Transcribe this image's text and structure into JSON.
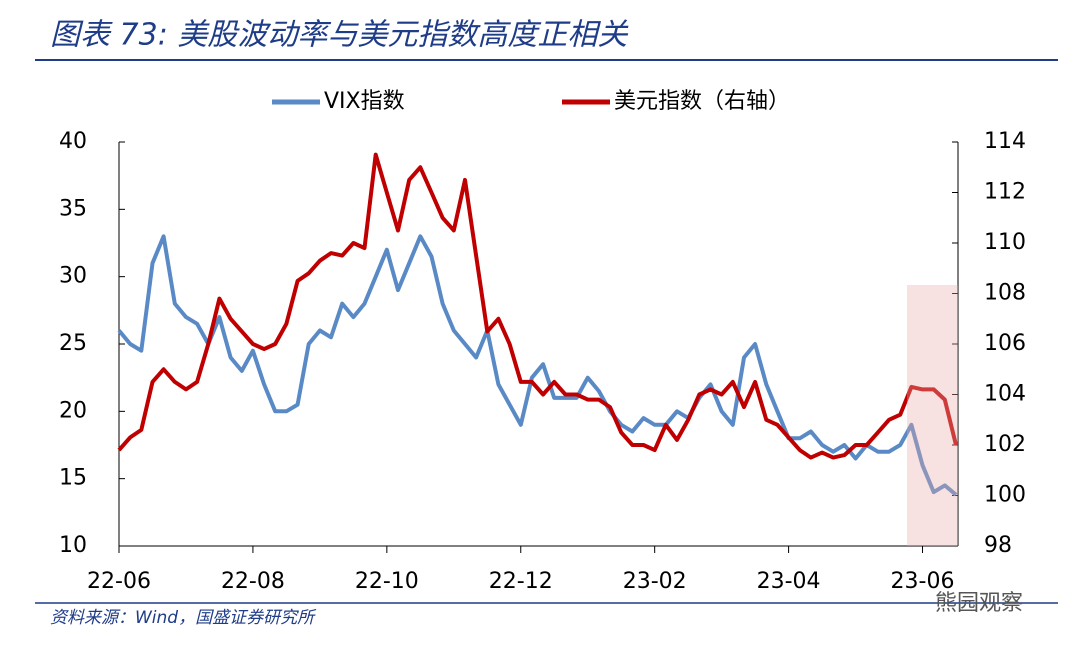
{
  "chart_data": {
    "type": "line",
    "title": "图表 73:  美股波动率与美元指数高度正相关",
    "source": "资料来源：Wind，国盛证券研究所",
    "watermark": "熊园观察",
    "categories": [
      "22-06",
      null,
      null,
      null,
      null,
      null,
      null,
      null,
      null,
      null,
      null,
      null,
      "22-08",
      null,
      null,
      null,
      null,
      null,
      null,
      null,
      null,
      null,
      null,
      null,
      "22-10",
      null,
      null,
      null,
      null,
      null,
      null,
      null,
      null,
      null,
      null,
      null,
      "22-12",
      null,
      null,
      null,
      null,
      null,
      null,
      null,
      null,
      null,
      null,
      null,
      "23-02",
      null,
      null,
      null,
      null,
      null,
      null,
      null,
      null,
      null,
      null,
      null,
      "23-04",
      null,
      null,
      null,
      null,
      null,
      null,
      null,
      null,
      null,
      null,
      null,
      "23-06",
      null,
      null,
      null
    ],
    "series": [
      {
        "name": "VIX指数",
        "color": "#5a8ac6",
        "values": [
          26,
          25,
          24.5,
          31,
          33,
          28,
          27,
          26.5,
          25,
          27,
          24,
          23,
          24.5,
          22,
          20,
          20,
          20.5,
          25,
          26,
          25.5,
          28,
          27,
          28,
          30,
          32,
          29,
          31,
          33,
          31.5,
          28,
          26,
          25,
          24,
          26,
          22,
          20.5,
          19,
          22.5,
          23.5,
          21,
          21,
          21,
          22.5,
          21.5,
          20,
          19,
          18.5,
          19.5,
          19,
          19,
          20,
          19.5,
          21,
          22,
          20,
          19,
          24,
          25,
          22,
          20,
          18,
          18,
          18.5,
          17.5,
          17,
          17.5,
          16.5,
          17.5,
          17,
          17,
          17.5,
          19,
          16,
          14,
          14.5,
          13.8
        ]
      },
      {
        "name": "美元指数（右轴）",
        "color": "#c00000",
        "axis": "y2",
        "values": [
          101.8,
          102.3,
          102.6,
          104.5,
          105,
          104.5,
          104.2,
          104.5,
          106,
          107.8,
          107,
          106.5,
          106,
          105.8,
          106,
          106.8,
          108.5,
          108.8,
          109.3,
          109.6,
          109.5,
          110,
          109.8,
          113.5,
          112,
          110.5,
          112.5,
          113,
          112,
          111,
          110.5,
          112.5,
          109.5,
          106.5,
          107,
          106,
          104.5,
          104.5,
          104,
          104.5,
          104,
          104,
          103.8,
          103.8,
          103.5,
          102.5,
          102,
          102,
          101.8,
          102.8,
          102.2,
          103,
          104,
          104.2,
          104,
          104.5,
          103.5,
          104.5,
          103,
          102.8,
          102.3,
          101.8,
          101.5,
          101.7,
          101.5,
          101.6,
          102,
          102,
          102.5,
          103,
          103.2,
          104.3,
          104.2,
          104.2,
          103.8,
          102
        ]
      }
    ],
    "ylim": [
      10,
      40
    ],
    "yticks": [
      10,
      15,
      20,
      25,
      30,
      35,
      40
    ],
    "y2lim": [
      98,
      114
    ],
    "y2ticks": [
      98,
      100,
      102,
      104,
      106,
      108,
      110,
      112,
      114
    ],
    "legend": "top"
  }
}
